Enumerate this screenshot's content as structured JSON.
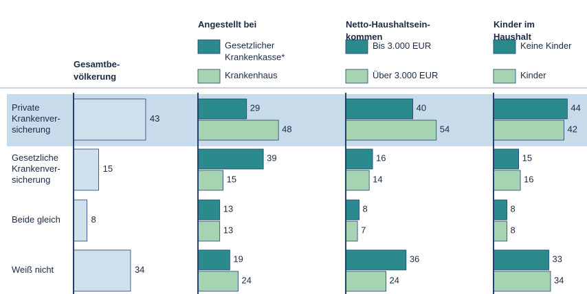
{
  "chart_data": [
    {
      "type": "hbar",
      "title": "Gesamtbe-\nvölkerung",
      "categories": [
        "Private\nKrankenver-\nsicherung",
        "Gesetzliche\nKrankenver-\nsicherung",
        "Beide gleich",
        "Weiß nicht"
      ],
      "values": [
        43,
        15,
        8,
        34
      ],
      "color": "#cfdfec"
    },
    {
      "type": "hbar",
      "title": "Angestellt bei",
      "series": [
        {
          "name": "Gesetzlicher\nKrankenkasse*",
          "color": "#2b8a8c",
          "values": [
            29,
            39,
            13,
            19
          ]
        },
        {
          "name": "Krankenhaus",
          "color": "#a6d4b2",
          "values": [
            48,
            15,
            13,
            24
          ]
        }
      ]
    },
    {
      "type": "hbar",
      "title": "Netto-Haushaltsein-\nkommen",
      "series": [
        {
          "name": "Bis 3.000 EUR",
          "color": "#2b8a8c",
          "values": [
            40,
            16,
            8,
            36
          ]
        },
        {
          "name": "Über 3.000 EUR",
          "color": "#a6d4b2",
          "values": [
            54,
            14,
            7,
            24
          ]
        }
      ]
    },
    {
      "type": "hbar",
      "title": "Kinder im\nHaushalt",
      "series": [
        {
          "name": "Keine Kinder",
          "color": "#2b8a8c",
          "values": [
            44,
            15,
            8,
            33
          ]
        },
        {
          "name": "Kinder",
          "color": "#a6d4b2",
          "values": [
            42,
            16,
            8,
            34
          ]
        }
      ]
    }
  ]
}
